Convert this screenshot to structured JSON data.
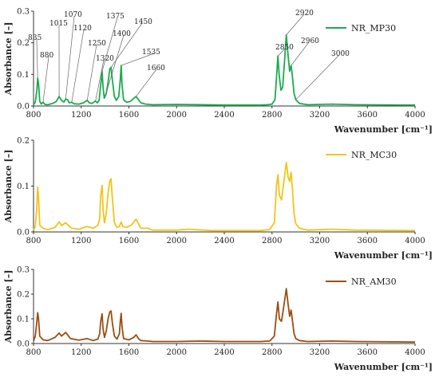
{
  "chart_data": [
    {
      "type": "line",
      "xlabel": "Wavenumber [cm⁻¹]",
      "ylabel": "Absorbance [–]",
      "xlim": [
        800,
        4000
      ],
      "ylim": [
        0,
        0.3
      ],
      "xticks": [
        "800",
        "1200",
        "1600",
        "2000",
        "2400",
        "2800",
        "3200",
        "3600",
        "4000"
      ],
      "yticks": [
        "0.0",
        "0.1",
        "0.2",
        "0.3"
      ],
      "grid": false,
      "legend": "top-right",
      "series": [
        {
          "name": "NR_MP30",
          "color": "#1aab4f"
        }
      ],
      "points": [
        [
          800,
          0.004
        ],
        [
          815,
          0.012
        ],
        [
          828,
          0.05
        ],
        [
          835,
          0.088
        ],
        [
          842,
          0.07
        ],
        [
          852,
          0.015
        ],
        [
          865,
          0.006
        ],
        [
          880,
          0.012
        ],
        [
          895,
          0.005
        ],
        [
          920,
          0.004
        ],
        [
          960,
          0.008
        ],
        [
          990,
          0.014
        ],
        [
          1015,
          0.03
        ],
        [
          1035,
          0.018
        ],
        [
          1055,
          0.012
        ],
        [
          1070,
          0.022
        ],
        [
          1085,
          0.02
        ],
        [
          1100,
          0.01
        ],
        [
          1120,
          0.012
        ],
        [
          1140,
          0.007
        ],
        [
          1180,
          0.006
        ],
        [
          1220,
          0.01
        ],
        [
          1250,
          0.018
        ],
        [
          1268,
          0.01
        ],
        [
          1290,
          0.008
        ],
        [
          1320,
          0.016
        ],
        [
          1335,
          0.01
        ],
        [
          1350,
          0.018
        ],
        [
          1362,
          0.06
        ],
        [
          1375,
          0.11
        ],
        [
          1383,
          0.06
        ],
        [
          1393,
          0.025
        ],
        [
          1400,
          0.03
        ],
        [
          1410,
          0.04
        ],
        [
          1425,
          0.075
        ],
        [
          1440,
          0.118
        ],
        [
          1450,
          0.122
        ],
        [
          1462,
          0.08
        ],
        [
          1478,
          0.03
        ],
        [
          1495,
          0.018
        ],
        [
          1515,
          0.03
        ],
        [
          1527,
          0.08
        ],
        [
          1535,
          0.128
        ],
        [
          1542,
          0.07
        ],
        [
          1555,
          0.02
        ],
        [
          1580,
          0.012
        ],
        [
          1610,
          0.014
        ],
        [
          1640,
          0.024
        ],
        [
          1660,
          0.03
        ],
        [
          1680,
          0.02
        ],
        [
          1700,
          0.01
        ],
        [
          1740,
          0.006
        ],
        [
          1800,
          0.004
        ],
        [
          2000,
          0.005
        ],
        [
          2400,
          0.003
        ],
        [
          2700,
          0.003
        ],
        [
          2760,
          0.004
        ],
        [
          2800,
          0.006
        ],
        [
          2825,
          0.02
        ],
        [
          2840,
          0.1
        ],
        [
          2850,
          0.158
        ],
        [
          2860,
          0.1
        ],
        [
          2875,
          0.05
        ],
        [
          2890,
          0.06
        ],
        [
          2905,
          0.14
        ],
        [
          2920,
          0.225
        ],
        [
          2935,
          0.16
        ],
        [
          2948,
          0.11
        ],
        [
          2960,
          0.128
        ],
        [
          2970,
          0.1
        ],
        [
          2985,
          0.04
        ],
        [
          3000,
          0.02
        ],
        [
          3030,
          0.008
        ],
        [
          3100,
          0.004
        ],
        [
          3300,
          0.006
        ],
        [
          3500,
          0.004
        ],
        [
          4000,
          0.003
        ]
      ],
      "annotations": [
        {
          "label": "835",
          "x": 835
        },
        {
          "label": "880",
          "x": 880
        },
        {
          "label": "1015",
          "x": 1015
        },
        {
          "label": "1070",
          "x": 1070
        },
        {
          "label": "1120",
          "x": 1120
        },
        {
          "label": "1250",
          "x": 1250
        },
        {
          "label": "1320",
          "x": 1320
        },
        {
          "label": "1375",
          "x": 1375
        },
        {
          "label": "1400",
          "x": 1400
        },
        {
          "label": "1450",
          "x": 1450
        },
        {
          "label": "1535",
          "x": 1535
        },
        {
          "label": "1660",
          "x": 1660
        },
        {
          "label": "2850",
          "x": 2850
        },
        {
          "label": "2920",
          "x": 2920
        },
        {
          "label": "2960",
          "x": 2960
        },
        {
          "label": "3000",
          "x": 3000
        }
      ]
    },
    {
      "type": "line",
      "xlabel": "Wavenumber [cm⁻¹]",
      "ylabel": "Absorbance [–]",
      "xlim": [
        800,
        4000
      ],
      "ylim": [
        0,
        0.2
      ],
      "xticks": [
        "800",
        "1200",
        "1600",
        "2000",
        "2400",
        "2800",
        "3200",
        "3600",
        "4000"
      ],
      "yticks": [
        "0.0",
        "0.1",
        "0.2"
      ],
      "grid": false,
      "legend": "top-right",
      "series": [
        {
          "name": "NR_MC30",
          "color": "#f2c419"
        }
      ],
      "points": [
        [
          800,
          0.004
        ],
        [
          815,
          0.012
        ],
        [
          828,
          0.055
        ],
        [
          835,
          0.098
        ],
        [
          842,
          0.075
        ],
        [
          852,
          0.015
        ],
        [
          880,
          0.008
        ],
        [
          920,
          0.005
        ],
        [
          980,
          0.01
        ],
        [
          1015,
          0.022
        ],
        [
          1035,
          0.014
        ],
        [
          1070,
          0.02
        ],
        [
          1085,
          0.016
        ],
        [
          1120,
          0.008
        ],
        [
          1180,
          0.006
        ],
        [
          1250,
          0.012
        ],
        [
          1300,
          0.008
        ],
        [
          1340,
          0.014
        ],
        [
          1355,
          0.03
        ],
        [
          1364,
          0.08
        ],
        [
          1375,
          0.102
        ],
        [
          1383,
          0.05
        ],
        [
          1395,
          0.02
        ],
        [
          1410,
          0.04
        ],
        [
          1425,
          0.085
        ],
        [
          1440,
          0.112
        ],
        [
          1450,
          0.116
        ],
        [
          1462,
          0.07
        ],
        [
          1478,
          0.02
        ],
        [
          1500,
          0.01
        ],
        [
          1520,
          0.012
        ],
        [
          1535,
          0.022
        ],
        [
          1548,
          0.012
        ],
        [
          1580,
          0.01
        ],
        [
          1620,
          0.015
        ],
        [
          1660,
          0.028
        ],
        [
          1680,
          0.018
        ],
        [
          1700,
          0.008
        ],
        [
          1760,
          0.008
        ],
        [
          1800,
          0.004
        ],
        [
          2000,
          0.004
        ],
        [
          2100,
          0.006
        ],
        [
          2300,
          0.003
        ],
        [
          2700,
          0.003
        ],
        [
          2780,
          0.005
        ],
        [
          2820,
          0.02
        ],
        [
          2838,
          0.1
        ],
        [
          2850,
          0.125
        ],
        [
          2862,
          0.08
        ],
        [
          2880,
          0.07
        ],
        [
          2905,
          0.12
        ],
        [
          2920,
          0.152
        ],
        [
          2935,
          0.12
        ],
        [
          2948,
          0.11
        ],
        [
          2960,
          0.13
        ],
        [
          2970,
          0.1
        ],
        [
          2985,
          0.04
        ],
        [
          3000,
          0.018
        ],
        [
          3030,
          0.008
        ],
        [
          3100,
          0.004
        ],
        [
          3300,
          0.006
        ],
        [
          3500,
          0.004
        ],
        [
          4000,
          0.003
        ]
      ],
      "annotations": []
    },
    {
      "type": "line",
      "xlabel": "Wavenumber [cm⁻¹]",
      "ylabel": "Absorbance [–]",
      "xlim": [
        800,
        4000
      ],
      "ylim": [
        0,
        0.3
      ],
      "xticks": [
        "800",
        "1200",
        "1600",
        "2000",
        "2400",
        "2800",
        "3200",
        "3600",
        "4000"
      ],
      "yticks": [
        "0.0",
        "0.1",
        "0.2",
        "0.3"
      ],
      "grid": false,
      "legend": "top-right",
      "series": [
        {
          "name": "NR_AM30",
          "color": "#9a4e12"
        }
      ],
      "points": [
        [
          800,
          0.01
        ],
        [
          815,
          0.03
        ],
        [
          828,
          0.09
        ],
        [
          835,
          0.125
        ],
        [
          842,
          0.1
        ],
        [
          852,
          0.03
        ],
        [
          880,
          0.015
        ],
        [
          920,
          0.012
        ],
        [
          980,
          0.025
        ],
        [
          1015,
          0.042
        ],
        [
          1035,
          0.03
        ],
        [
          1070,
          0.045
        ],
        [
          1085,
          0.035
        ],
        [
          1110,
          0.02
        ],
        [
          1180,
          0.014
        ],
        [
          1250,
          0.02
        ],
        [
          1300,
          0.012
        ],
        [
          1340,
          0.018
        ],
        [
          1355,
          0.04
        ],
        [
          1364,
          0.09
        ],
        [
          1375,
          0.12
        ],
        [
          1383,
          0.06
        ],
        [
          1395,
          0.025
        ],
        [
          1410,
          0.05
        ],
        [
          1425,
          0.1
        ],
        [
          1440,
          0.128
        ],
        [
          1450,
          0.132
        ],
        [
          1462,
          0.08
        ],
        [
          1478,
          0.03
        ],
        [
          1500,
          0.018
        ],
        [
          1520,
          0.04
        ],
        [
          1528,
          0.09
        ],
        [
          1535,
          0.122
        ],
        [
          1542,
          0.07
        ],
        [
          1555,
          0.02
        ],
        [
          1600,
          0.015
        ],
        [
          1640,
          0.025
        ],
        [
          1660,
          0.035
        ],
        [
          1680,
          0.02
        ],
        [
          1700,
          0.012
        ],
        [
          1760,
          0.01
        ],
        [
          1800,
          0.008
        ],
        [
          2000,
          0.008
        ],
        [
          2200,
          0.01
        ],
        [
          2400,
          0.008
        ],
        [
          2700,
          0.008
        ],
        [
          2780,
          0.01
        ],
        [
          2820,
          0.03
        ],
        [
          2838,
          0.12
        ],
        [
          2850,
          0.168
        ],
        [
          2862,
          0.1
        ],
        [
          2880,
          0.09
        ],
        [
          2905,
          0.17
        ],
        [
          2920,
          0.222
        ],
        [
          2935,
          0.16
        ],
        [
          2948,
          0.11
        ],
        [
          2960,
          0.135
        ],
        [
          2970,
          0.1
        ],
        [
          2985,
          0.04
        ],
        [
          3000,
          0.02
        ],
        [
          3030,
          0.012
        ],
        [
          3100,
          0.008
        ],
        [
          3300,
          0.01
        ],
        [
          3500,
          0.008
        ],
        [
          4000,
          0.006
        ]
      ],
      "annotations": []
    }
  ]
}
